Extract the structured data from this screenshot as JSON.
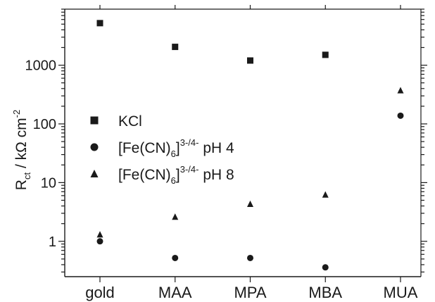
{
  "chart_data": {
    "type": "scatter",
    "title": "",
    "xlabel": "",
    "ylabel": {
      "main": "R",
      "sub": "ct",
      "unit": " / kΩ cm",
      "unit_sup": "-2"
    },
    "yscale": "log",
    "ylim": [
      0.25,
      9000
    ],
    "yticks": [
      {
        "value": 1,
        "label": "1"
      },
      {
        "value": 10,
        "label": "10"
      },
      {
        "value": 100,
        "label": "100"
      },
      {
        "value": 1000,
        "label": "1000"
      }
    ],
    "categories": [
      "gold",
      "MAA",
      "MPA",
      "MBA",
      "MUA"
    ],
    "series": [
      {
        "name": "KCl",
        "marker": "square",
        "color": "#1a1a1a",
        "values": [
          5200,
          2050,
          1200,
          1500,
          null
        ]
      },
      {
        "name": "[Fe(CN)6]3-/4- pH 4",
        "legend_parts": {
          "pre": "[Fe(CN)",
          "sub": "6",
          "mid": "]",
          "sup": "3-/4-",
          "post": " pH 4"
        },
        "marker": "circle",
        "color": "#1a1a1a",
        "values": [
          1.0,
          0.52,
          0.52,
          0.36,
          138
        ]
      },
      {
        "name": "[Fe(CN)6]3-/4- pH 8",
        "legend_parts": {
          "pre": "[Fe(CN)",
          "sub": "6",
          "mid": "]",
          "sup": "3-/4-",
          "post": " pH 8"
        },
        "marker": "triangle",
        "color": "#1a1a1a",
        "values": [
          1.3,
          2.6,
          4.3,
          6.2,
          370
        ]
      }
    ],
    "legend_position": "middle-left",
    "grid": false
  }
}
